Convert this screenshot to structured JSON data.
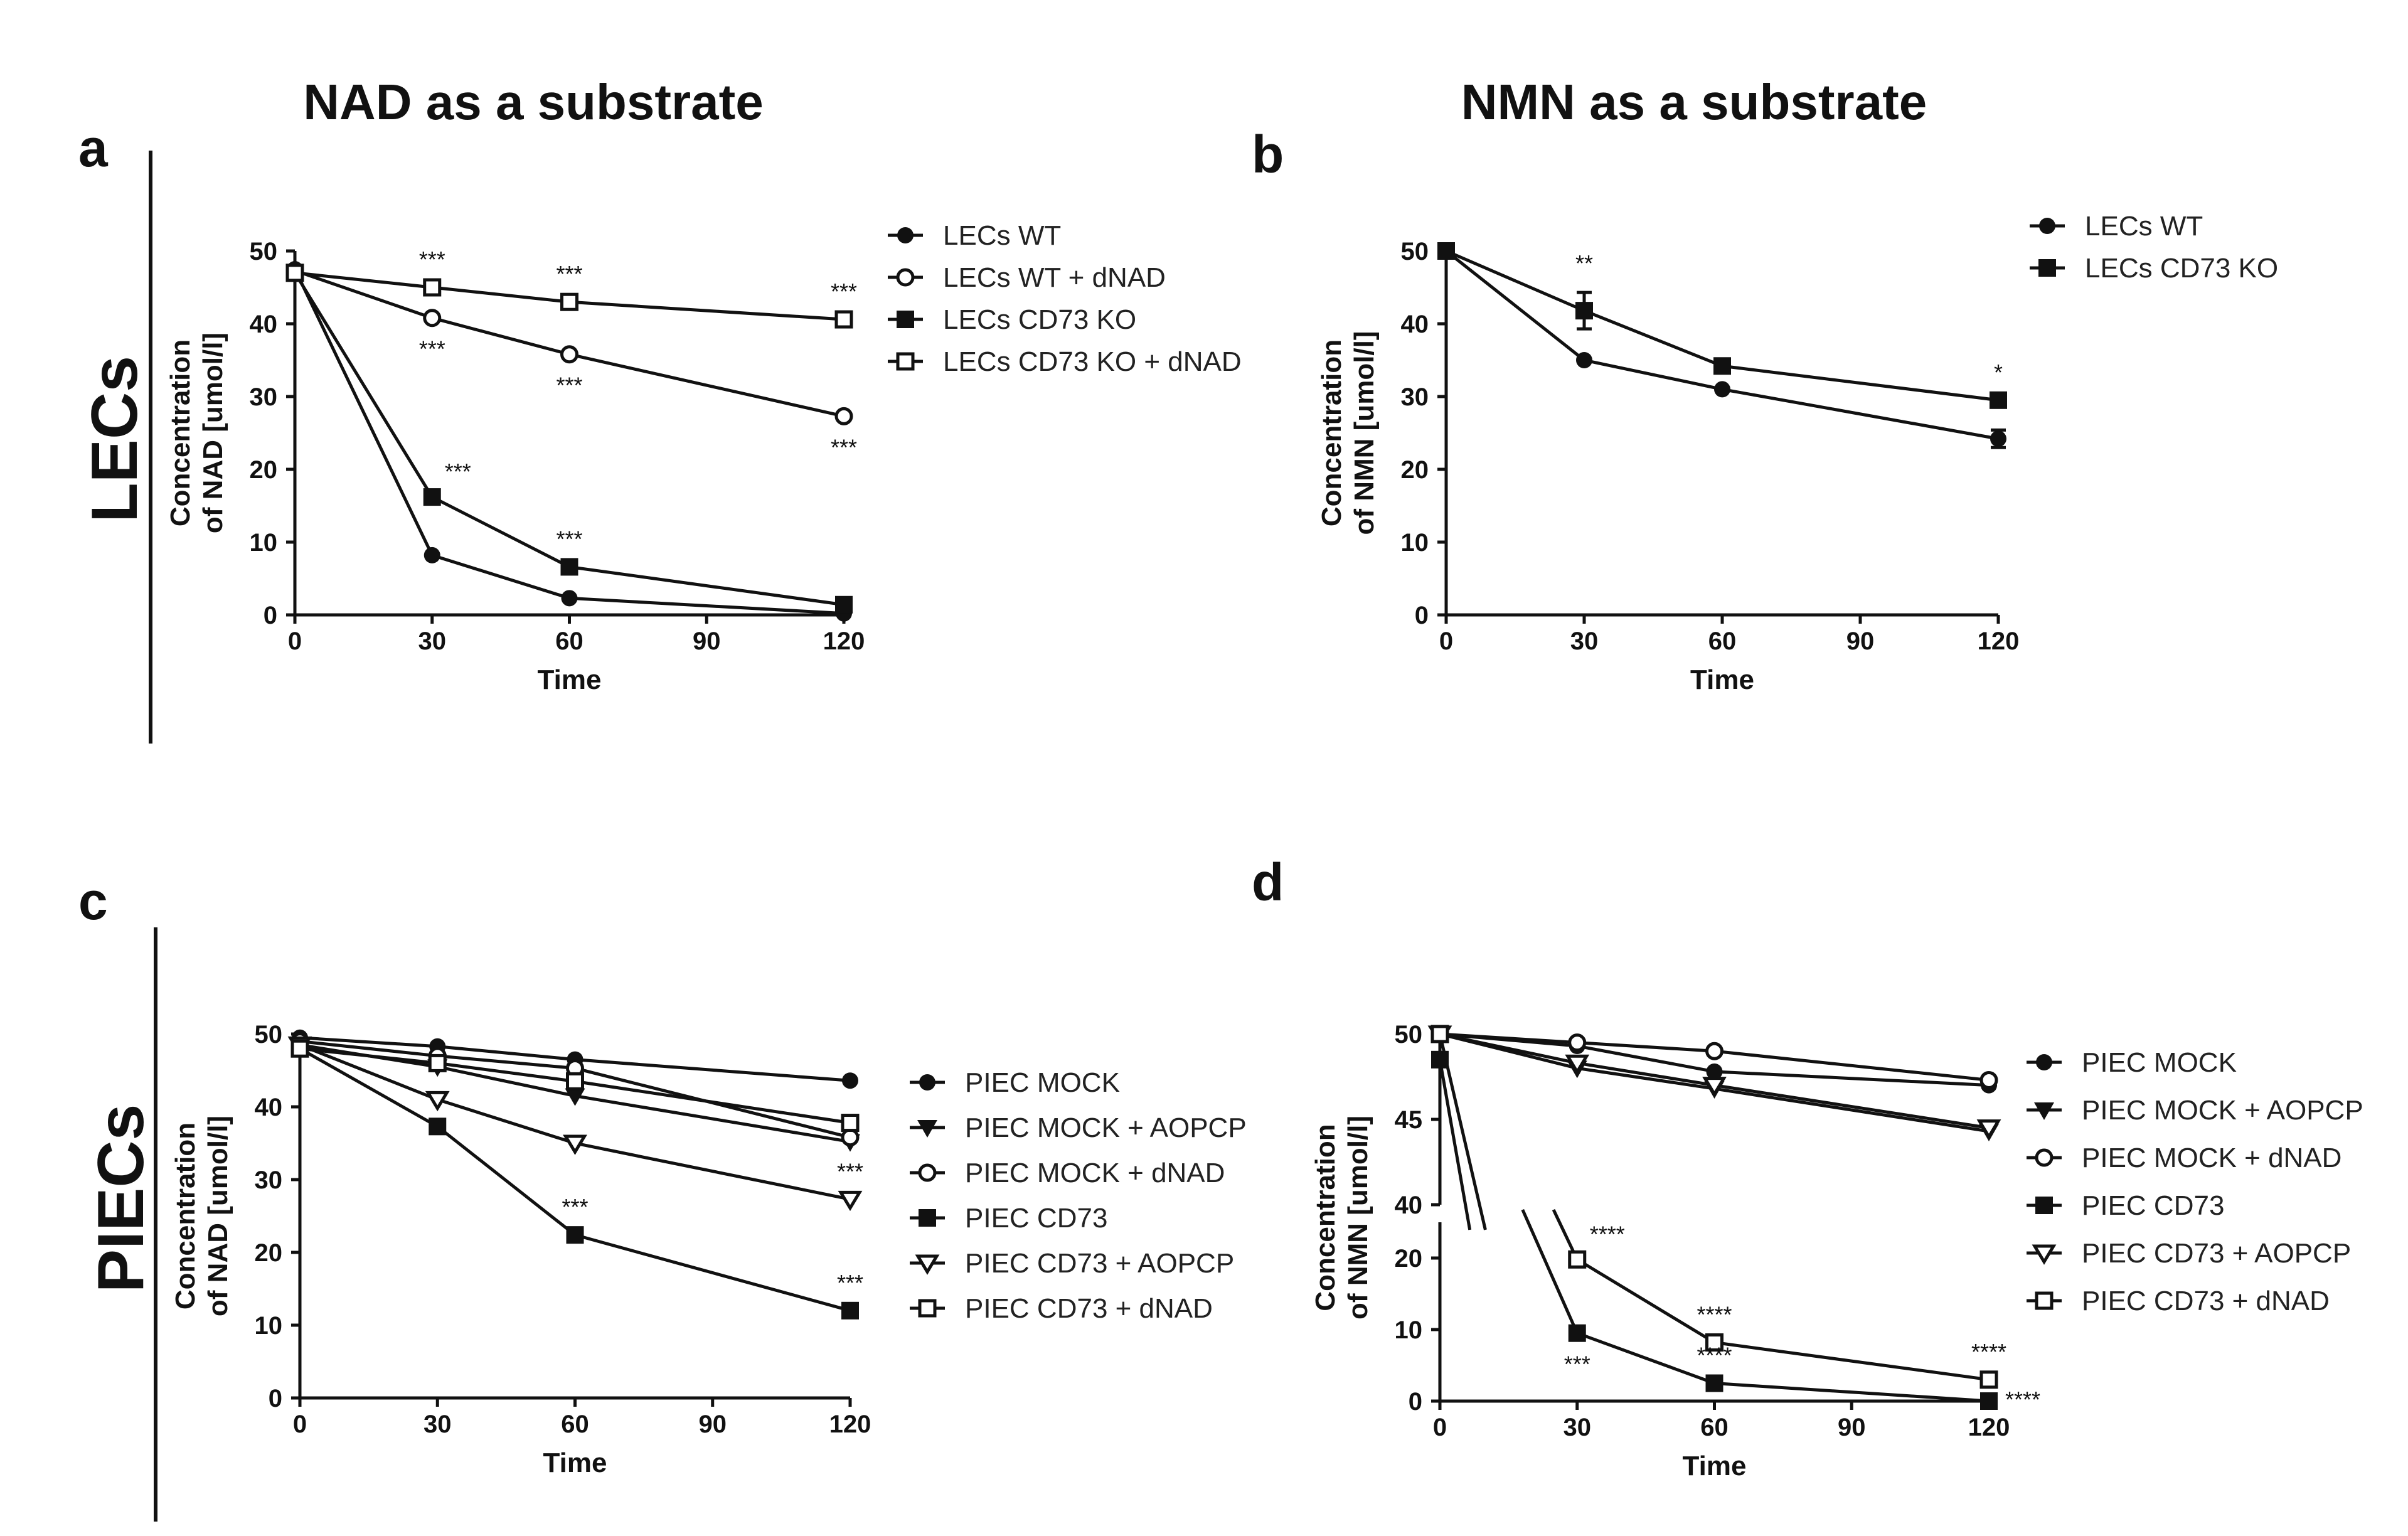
{
  "column_titles": [
    "NAD as a substrate",
    "NMN as a substrate"
  ],
  "row_labels": [
    "LECs",
    "PIECs"
  ],
  "chart_data": [
    {
      "panel": "a",
      "type": "line",
      "xlabel": "Time",
      "ylabel": "Concentration of NAD [umol/l]",
      "x": [
        0,
        30,
        60,
        120
      ],
      "xticks": [
        "0",
        "30",
        "60",
        "90",
        "120"
      ],
      "xlim": [
        0,
        120
      ],
      "ylim": [
        0,
        50
      ],
      "yticks": [
        "0",
        "10",
        "20",
        "30",
        "40",
        "50"
      ],
      "series": [
        {
          "name": "LECs WT",
          "marker": "circle-filled",
          "values": [
            47.5,
            8.2,
            2.3,
            0.2
          ]
        },
        {
          "name": "LECs WT + dNAD",
          "marker": "circle-open",
          "values": [
            47.3,
            40.8,
            35.8,
            27.3
          ]
        },
        {
          "name": "LECs CD73 KO",
          "marker": "square-filled",
          "values": [
            47.0,
            16.2,
            6.6,
            1.4
          ]
        },
        {
          "name": "LECs CD73 KO + dNAD",
          "marker": "square-open",
          "values": [
            47.0,
            45.0,
            43.0,
            40.6
          ]
        }
      ],
      "annotations": [
        {
          "text": "***",
          "x": 30,
          "y": 45.0,
          "pos": "above"
        },
        {
          "text": "***",
          "x": 60,
          "y": 43.0,
          "pos": "above"
        },
        {
          "text": "***",
          "x": 120,
          "y": 40.6,
          "pos": "above"
        },
        {
          "text": "***",
          "x": 30,
          "y": 40.8,
          "pos": "below"
        },
        {
          "text": "***",
          "x": 60,
          "y": 35.8,
          "pos": "below"
        },
        {
          "text": "***",
          "x": 120,
          "y": 27.3,
          "pos": "below"
        },
        {
          "text": "***",
          "x": 30,
          "y": 16.2,
          "pos": "above-right"
        },
        {
          "text": "***",
          "x": 60,
          "y": 6.6,
          "pos": "above"
        }
      ]
    },
    {
      "panel": "b",
      "type": "line",
      "xlabel": "Time",
      "ylabel": "Concentration of NMN [umol/l]",
      "x": [
        0,
        30,
        60,
        120
      ],
      "xticks": [
        "0",
        "30",
        "60",
        "90",
        "120"
      ],
      "xlim": [
        0,
        120
      ],
      "ylim": [
        0,
        50
      ],
      "yticks": [
        "0",
        "10",
        "20",
        "30",
        "40",
        "50"
      ],
      "series": [
        {
          "name": "LECs WT",
          "marker": "circle-filled",
          "values": [
            50.0,
            35.0,
            31.0,
            24.2
          ]
        },
        {
          "name": "LECs CD73 KO",
          "marker": "square-filled",
          "values": [
            50.0,
            41.8,
            34.2,
            29.5
          ]
        }
      ],
      "annotations": [
        {
          "text": "**",
          "x": 30,
          "y": 44.5,
          "pos": "above"
        },
        {
          "text": "*",
          "x": 120,
          "y": 29.5,
          "pos": "above"
        }
      ]
    },
    {
      "panel": "c",
      "type": "line",
      "xlabel": "Time",
      "ylabel": "Concentration of NAD [umol/l]",
      "x": [
        0,
        30,
        60,
        120
      ],
      "xticks": [
        "0",
        "30",
        "60",
        "90",
        "120"
      ],
      "xlim": [
        0,
        120
      ],
      "ylim": [
        0,
        50
      ],
      "yticks": [
        "0",
        "10",
        "20",
        "30",
        "40",
        "50"
      ],
      "series": [
        {
          "name": "PIEC MOCK",
          "marker": "circle-filled",
          "values": [
            49.5,
            48.3,
            46.5,
            43.6
          ]
        },
        {
          "name": "PIEC MOCK + AOPCP",
          "marker": "triangle-down-filled",
          "values": [
            48.5,
            45.5,
            41.5,
            35.2
          ]
        },
        {
          "name": "PIEC MOCK + dNAD",
          "marker": "circle-open",
          "values": [
            49.0,
            47.0,
            45.3,
            35.8
          ]
        },
        {
          "name": "PIEC CD73",
          "marker": "square-filled",
          "values": [
            48.0,
            37.3,
            22.4,
            12.0
          ]
        },
        {
          "name": "PIEC CD73 + AOPCP",
          "marker": "triangle-down-open",
          "values": [
            48.5,
            41.0,
            35.0,
            27.3
          ]
        },
        {
          "name": "PIEC CD73 + dNAD",
          "marker": "square-open",
          "values": [
            48.0,
            46.0,
            43.5,
            37.8
          ]
        }
      ],
      "annotations": [
        {
          "text": "***",
          "x": 60,
          "y": 22.4,
          "pos": "above"
        },
        {
          "text": "***",
          "x": 120,
          "y": 27.3,
          "pos": "above"
        },
        {
          "text": "***",
          "x": 120,
          "y": 12.0,
          "pos": "above"
        }
      ]
    },
    {
      "panel": "d",
      "type": "line",
      "xlabel": "Time",
      "ylabel": "Concentration of NMN [umol/l]",
      "x": [
        0,
        30,
        60,
        120
      ],
      "xticks": [
        "0",
        "30",
        "60",
        "90",
        "120"
      ],
      "xlim": [
        0,
        120
      ],
      "broken_y_axis": {
        "lower": [
          0,
          25
        ],
        "upper": [
          40,
          50
        ]
      },
      "yticks_lower": [
        "0",
        "10",
        "20"
      ],
      "yticks_upper": [
        "40",
        "45",
        "50"
      ],
      "series": [
        {
          "name": "PIEC MOCK",
          "marker": "circle-filled",
          "values": [
            50.0,
            49.3,
            47.8,
            47.0
          ]
        },
        {
          "name": "PIEC MOCK + AOPCP",
          "marker": "triangle-down-filled",
          "values": [
            50.0,
            48.0,
            46.8,
            44.3
          ]
        },
        {
          "name": "PIEC MOCK + dNAD",
          "marker": "circle-open",
          "values": [
            50.0,
            49.5,
            49.0,
            47.3
          ]
        },
        {
          "name": "PIEC CD73",
          "marker": "square-filled",
          "values": [
            48.5,
            9.5,
            2.5,
            0.0
          ]
        },
        {
          "name": "PIEC CD73 + AOPCP",
          "marker": "triangle-down-open",
          "values": [
            50.0,
            48.3,
            47.0,
            44.5
          ]
        },
        {
          "name": "PIEC CD73 + dNAD",
          "marker": "square-open",
          "values": [
            50.0,
            19.8,
            8.2,
            3.0
          ]
        }
      ],
      "annotations": [
        {
          "text": "****",
          "x": 30,
          "y": 19.8,
          "pos": "above-right"
        },
        {
          "text": "***",
          "x": 30,
          "y": 9.5,
          "pos": "below"
        },
        {
          "text": "****",
          "x": 60,
          "y": 8.2,
          "pos": "above"
        },
        {
          "text": "****",
          "x": 60,
          "y": 2.5,
          "pos": "above"
        },
        {
          "text": "****",
          "x": 120,
          "y": 3.0,
          "pos": "above"
        },
        {
          "text": "****",
          "x": 120,
          "y": 0.0,
          "pos": "right"
        }
      ]
    }
  ]
}
